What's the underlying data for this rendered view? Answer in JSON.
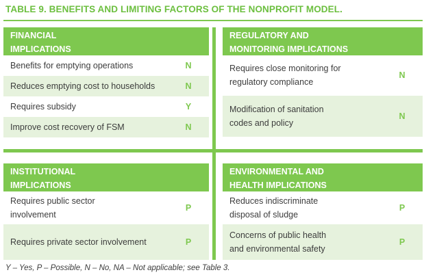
{
  "title": "TABLE 9. BENEFITS AND LIMITING FACTORS OF THE NONPROFIT MODEL.",
  "financial": {
    "heading_line1": "FINANCIAL",
    "heading_line2": "IMPLICATIONS",
    "rows": [
      {
        "label": "Benefits for emptying operations",
        "value": "N"
      },
      {
        "label": "Reduces emptying cost to households",
        "value": "N"
      },
      {
        "label": "Requires subsidy",
        "value": "Y"
      },
      {
        "label": "Improve cost recovery of FSM",
        "value": "N"
      }
    ]
  },
  "regulatory": {
    "heading_line1": "REGULATORY AND",
    "heading_line2": "MONITORING IMPLICATIONS",
    "rows": [
      {
        "label_line1": "Requires close monitoring for",
        "label_line2": "regulatory compliance",
        "value": "N"
      },
      {
        "label_line1": "Modification of sanitation",
        "label_line2": "codes and policy",
        "value": "N"
      }
    ]
  },
  "institutional": {
    "heading_line1": "INSTITUTIONAL",
    "heading_line2": "IMPLICATIONS",
    "rows": [
      {
        "label_line1": "Requires public sector",
        "label_line2": "involvement",
        "value": "P"
      },
      {
        "label_line1": "Requires private sector involvement",
        "label_line2": "",
        "value": "P"
      }
    ]
  },
  "environmental": {
    "heading_line1": "ENVIRONMENTAL AND",
    "heading_line2": "HEALTH IMPLICATIONS",
    "rows": [
      {
        "label_line1": "Reduces indiscriminate",
        "label_line2": "disposal of sludge",
        "value": "P"
      },
      {
        "label_line1": "Concerns of public health",
        "label_line2": "and environmental safety",
        "value": "P"
      }
    ]
  },
  "footnote": "Y – Yes, P – Possible, N – No, NA – Not applicable; see Table 3.",
  "colors": {
    "accent": "#7ec84f",
    "shade": "#e6f2dd",
    "title": "#6cbf3f"
  }
}
